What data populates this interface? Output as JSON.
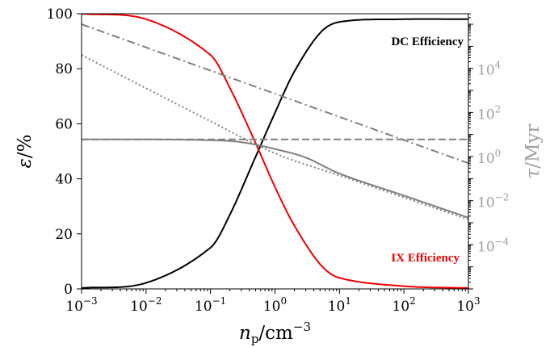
{
  "chart_data": {
    "type": "line",
    "title": "",
    "x_axis": {
      "label_base": "n",
      "label_sub": "p",
      "label_unit": "/cm",
      "label_sup": "−3",
      "scale": "log",
      "range": [
        0.001,
        1000
      ],
      "ticks": [
        {
          "base": "10",
          "exp": "−3"
        },
        {
          "base": "10",
          "exp": "−2"
        },
        {
          "base": "10",
          "exp": "−1"
        },
        {
          "base": "10",
          "exp": "0"
        },
        {
          "base": "10",
          "exp": "1"
        },
        {
          "base": "10",
          "exp": "2"
        },
        {
          "base": "10",
          "exp": "3"
        }
      ]
    },
    "y_left": {
      "label_sym": "ε",
      "label_unit": "/%",
      "range": [
        0,
        100
      ],
      "ticks": [
        "0",
        "20",
        "40",
        "60",
        "80",
        "100"
      ]
    },
    "y_right": {
      "label_sym": "τ",
      "label_unit": "/Myr",
      "scale": "log",
      "range": [
        1e-06,
        3000000
      ],
      "ticks": [
        {
          "base": "10",
          "exp": "−4"
        },
        {
          "base": "10",
          "exp": "−2"
        },
        {
          "base": "10",
          "exp": "0"
        },
        {
          "base": "10",
          "exp": "2"
        },
        {
          "base": "10",
          "exp": "4"
        }
      ]
    },
    "annotations": {
      "dc": "DC Efficiency",
      "ix": "IX Efficiency"
    },
    "series": [
      {
        "id": "dc-efficiency",
        "axis": "left",
        "color": "#000000",
        "dash": "solid",
        "x": [
          0.001,
          0.01,
          0.1,
          0.2,
          0.5,
          1,
          2,
          5,
          10,
          100,
          1000
        ],
        "y": [
          0.3,
          2.2,
          15,
          27,
          48,
          64,
          79,
          93,
          97,
          98,
          98
        ]
      },
      {
        "id": "ix-efficiency",
        "axis": "left",
        "color": "#ee0000",
        "dash": "solid",
        "x": [
          0.001,
          0.01,
          0.1,
          0.2,
          0.5,
          1,
          2,
          5,
          10,
          100,
          1000
        ],
        "y": [
          100,
          98,
          85,
          73,
          53,
          37,
          23,
          9,
          4,
          1,
          0.3
        ]
      },
      {
        "id": "tau-dash-dot",
        "axis": "right",
        "color": "#808080",
        "dash": "dashdot",
        "x": [
          0.001,
          1000
        ],
        "y": [
          1000000,
          0.5
        ]
      },
      {
        "id": "tau-dotted",
        "axis": "right",
        "color": "#808080",
        "dash": "dotted",
        "x": [
          0.001,
          0.1,
          1,
          10,
          100,
          1000
        ],
        "y": [
          40000,
          40,
          1.4,
          0.14,
          0.014,
          0.0014
        ]
      },
      {
        "id": "tau-dashed",
        "axis": "right",
        "color": "#808080",
        "dash": "dashed",
        "x": [
          0.001,
          1000
        ],
        "y": [
          6,
          6
        ]
      },
      {
        "id": "tau-solid",
        "axis": "right",
        "color": "#808080",
        "dash": "solid",
        "x": [
          0.001,
          0.01,
          0.1,
          0.3,
          1,
          3,
          10,
          100,
          1000
        ],
        "y": [
          6,
          6,
          5.5,
          4.5,
          2.2,
          0.9,
          0.17,
          0.017,
          0.0017
        ]
      }
    ]
  }
}
